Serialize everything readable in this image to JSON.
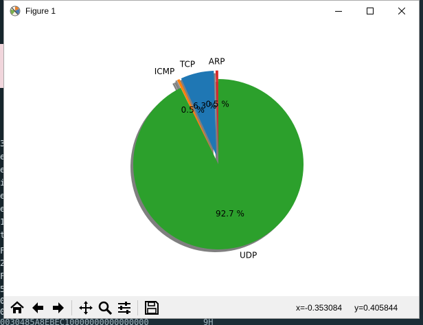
{
  "window": {
    "title": "Figure 1"
  },
  "icons": {
    "app": "matplotlib-logo-icon",
    "minimize": "minimize-icon",
    "maximize": "maximize-icon",
    "close": "close-icon"
  },
  "toolbar": {
    "buttons": [
      "home-icon",
      "back-arrow-icon",
      "forward-arrow-icon",
      "pan-icon",
      "zoom-icon",
      "subplots-config-icon",
      "save-icon"
    ],
    "coords": {
      "x": "x=-0.353084",
      "y": "y=0.405844"
    }
  },
  "background": {
    "left_glyphs": [
      "3",
      "e",
      "e",
      "i",
      "e",
      "e",
      "1",
      "t",
      "F",
      "2",
      "F",
      "5",
      "0",
      "0"
    ],
    "bottom_text": "0030485A8EBEC10000000000000000",
    "bottom_text_right": "9H"
  },
  "chart_data": {
    "type": "pie",
    "title": "",
    "shadow": true,
    "start_angle_deg": 90,
    "direction": "counterclockwise",
    "slices": [
      {
        "label": "ARP",
        "pct_label": "0.5 %",
        "value": 0.5,
        "color": "#d62728",
        "explode": 0.1
      },
      {
        "label": "TCP",
        "pct_label": "6.3 %",
        "value": 6.3,
        "color": "#1f77b4",
        "explode": 0.1
      },
      {
        "label": "ICMP",
        "pct_label": "0.5 %",
        "value": 0.5,
        "color": "#ff7f0e",
        "explode": 0.1
      },
      {
        "label": "",
        "pct_label": "",
        "value": 0.0,
        "color": "#8c8c8c",
        "explode": 0.1
      },
      {
        "label": "UDP",
        "pct_label": "92.7 %",
        "value": 92.7,
        "color": "#2ca02c",
        "explode": 0.0
      }
    ]
  }
}
